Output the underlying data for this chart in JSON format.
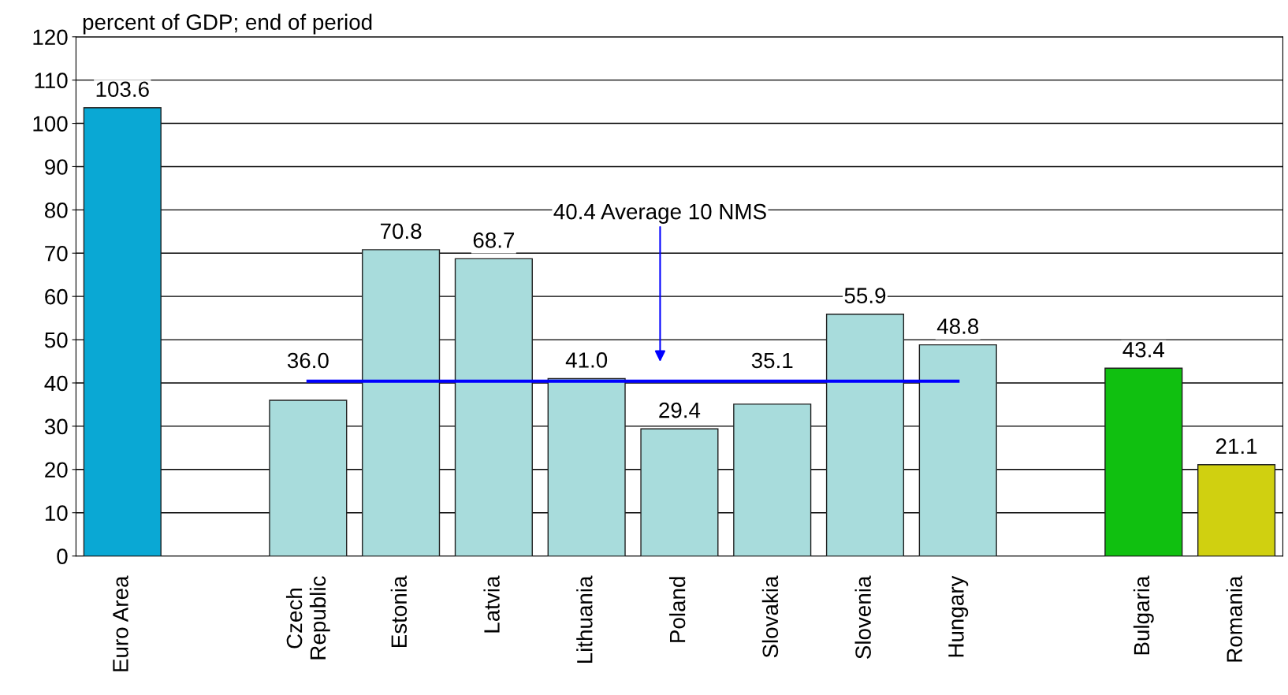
{
  "chart_data": {
    "type": "bar",
    "ylabel": "percent of GDP; end of period",
    "categories": [
      "Euro Area",
      null,
      "Czech\nRepublic",
      "Estonia",
      "Latvia",
      "Lithuania",
      "Poland",
      "Slovakia",
      "Slovenia",
      "Hungary",
      null,
      "Bulgaria",
      "Romania"
    ],
    "series": [
      {
        "values": [
          103.6,
          null,
          36.0,
          70.8,
          68.7,
          41.0,
          29.4,
          35.1,
          55.9,
          48.8,
          null,
          43.4,
          21.1
        ],
        "colors": [
          "#0aa8d4",
          null,
          "#a8dcdc",
          "#a8dcdc",
          "#a8dcdc",
          "#a8dcdc",
          "#a8dcdc",
          "#a8dcdc",
          "#a8dcdc",
          "#a8dcdc",
          null,
          "#10c010",
          "#d0d010"
        ],
        "value_labels": [
          "103.6",
          null,
          "36.0",
          "70.8",
          "68.7",
          "41.0",
          "29.4",
          "35.1",
          "55.9",
          "48.8",
          null,
          "43.4",
          "21.1"
        ]
      },
      {
        "type": "line",
        "color": "#0000ff",
        "values": [
          null,
          null,
          40.4,
          40.4,
          40.4,
          40.4,
          40.4,
          40.4,
          40.4,
          40.4,
          null,
          null,
          null
        ]
      }
    ],
    "annotations": [
      "40.4 Average 10 NMS"
    ],
    "ylim": [
      0,
      120
    ],
    "yticks": [
      0,
      10,
      20,
      30,
      40,
      50,
      60,
      70,
      80,
      90,
      100,
      110,
      120
    ],
    "grid": "y"
  }
}
